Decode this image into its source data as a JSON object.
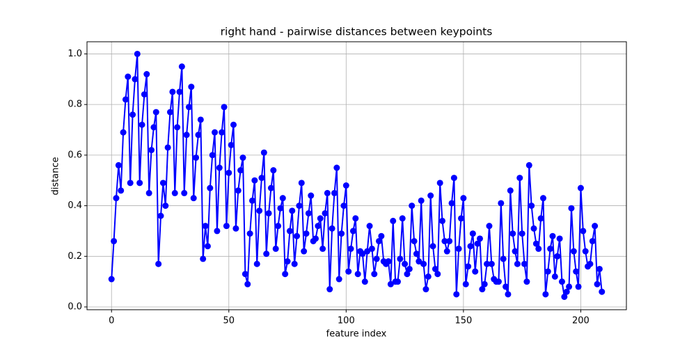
{
  "chart_data": {
    "type": "line",
    "title": "right hand - pairwise distances between keypoints",
    "x_label": "feature index",
    "y_label": "distance",
    "x": [
      0,
      1,
      2,
      3,
      4,
      5,
      6,
      7,
      8,
      9,
      10,
      11,
      12,
      13,
      14,
      15,
      16,
      17,
      18,
      19,
      20,
      21,
      22,
      23,
      24,
      25,
      26,
      27,
      28,
      29,
      30,
      31,
      32,
      33,
      34,
      35,
      36,
      37,
      38,
      39,
      40,
      41,
      42,
      43,
      44,
      45,
      46,
      47,
      48,
      49,
      50,
      51,
      52,
      53,
      54,
      55,
      56,
      57,
      58,
      59,
      60,
      61,
      62,
      63,
      64,
      65,
      66,
      67,
      68,
      69,
      70,
      71,
      72,
      73,
      74,
      75,
      76,
      77,
      78,
      79,
      80,
      81,
      82,
      83,
      84,
      85,
      86,
      87,
      88,
      89,
      90,
      91,
      92,
      93,
      94,
      95,
      96,
      97,
      98,
      99,
      100,
      101,
      102,
      103,
      104,
      105,
      106,
      107,
      108,
      109,
      110,
      111,
      112,
      113,
      114,
      115,
      116,
      117,
      118,
      119,
      120,
      121,
      122,
      123,
      124,
      125,
      126,
      127,
      128,
      129,
      130,
      131,
      132,
      133,
      134,
      135,
      136,
      137,
      138,
      139,
      140,
      141,
      142,
      143,
      144,
      145,
      146,
      147,
      148,
      149,
      150,
      151,
      152,
      153,
      154,
      155,
      156,
      157,
      158,
      159,
      160,
      161,
      162,
      163,
      164,
      165,
      166,
      167,
      168,
      169,
      170,
      171,
      172,
      173,
      174,
      175,
      176,
      177,
      178,
      179,
      180,
      181,
      182,
      183,
      184,
      185,
      186,
      187,
      188,
      189,
      190,
      191,
      192,
      193,
      194,
      195,
      196,
      197,
      198,
      199,
      200,
      201,
      202,
      203,
      204,
      205,
      206,
      207,
      208,
      209
    ],
    "series": [
      {
        "color": "#0000ff",
        "values": [
          0.11,
          0.26,
          0.43,
          0.56,
          0.46,
          0.69,
          0.82,
          0.91,
          0.49,
          0.76,
          0.9,
          1.0,
          0.49,
          0.72,
          0.84,
          0.92,
          0.45,
          0.62,
          0.71,
          0.77,
          0.17,
          0.36,
          0.49,
          0.4,
          0.63,
          0.77,
          0.85,
          0.45,
          0.71,
          0.85,
          0.95,
          0.45,
          0.68,
          0.79,
          0.87,
          0.43,
          0.59,
          0.68,
          0.74,
          0.19,
          0.32,
          0.24,
          0.47,
          0.6,
          0.69,
          0.3,
          0.55,
          0.69,
          0.79,
          0.32,
          0.53,
          0.64,
          0.72,
          0.31,
          0.46,
          0.54,
          0.59,
          0.13,
          0.09,
          0.29,
          0.42,
          0.5,
          0.17,
          0.38,
          0.51,
          0.61,
          0.21,
          0.37,
          0.47,
          0.54,
          0.23,
          0.32,
          0.39,
          0.43,
          0.13,
          0.18,
          0.3,
          0.38,
          0.17,
          0.28,
          0.4,
          0.49,
          0.22,
          0.29,
          0.37,
          0.44,
          0.26,
          0.27,
          0.32,
          0.35,
          0.23,
          0.37,
          0.45,
          0.07,
          0.31,
          0.45,
          0.55,
          0.11,
          0.29,
          0.4,
          0.48,
          0.14,
          0.23,
          0.3,
          0.35,
          0.13,
          0.22,
          0.21,
          0.1,
          0.22,
          0.32,
          0.23,
          0.13,
          0.19,
          0.26,
          0.28,
          0.18,
          0.17,
          0.18,
          0.09,
          0.34,
          0.1,
          0.1,
          0.19,
          0.35,
          0.17,
          0.13,
          0.15,
          0.4,
          0.26,
          0.21,
          0.18,
          0.42,
          0.17,
          0.07,
          0.12,
          0.44,
          0.24,
          0.15,
          0.13,
          0.49,
          0.34,
          0.26,
          0.22,
          0.26,
          0.41,
          0.51,
          0.05,
          0.23,
          0.35,
          0.43,
          0.09,
          0.16,
          0.24,
          0.29,
          0.14,
          0.25,
          0.27,
          0.07,
          0.09,
          0.17,
          0.32,
          0.17,
          0.11,
          0.1,
          0.1,
          0.41,
          0.19,
          0.08,
          0.05,
          0.46,
          0.29,
          0.22,
          0.17,
          0.51,
          0.29,
          0.17,
          0.1,
          0.56,
          0.4,
          0.31,
          0.25,
          0.23,
          0.35,
          0.43,
          0.05,
          0.14,
          0.23,
          0.28,
          0.12,
          0.2,
          0.27,
          0.1,
          0.04,
          0.06,
          0.08,
          0.39,
          0.22,
          0.14,
          0.08,
          0.47,
          0.3,
          0.22,
          0.16,
          0.17,
          0.26,
          0.32,
          0.09,
          0.15,
          0.06
        ]
      }
    ],
    "xlim": [
      -10.45,
      219.45
    ],
    "xticks": [
      0,
      50,
      100,
      150,
      200
    ],
    "ylim": [
      -0.011,
      1.048
    ],
    "yticks": [
      {
        "value": 0,
        "label": "0.0"
      },
      0.2,
      0.4,
      0.6,
      0.8,
      {
        "value": 1,
        "label": "1.0"
      }
    ],
    "grid": true
  }
}
